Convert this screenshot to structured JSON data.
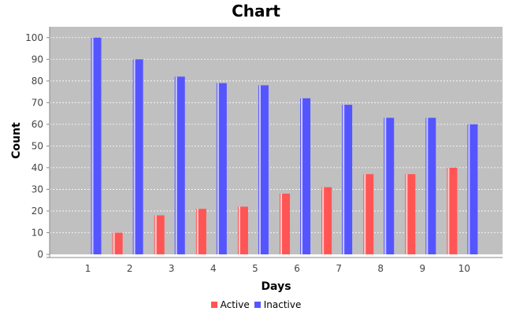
{
  "chart_data": {
    "type": "bar",
    "title": "Chart",
    "xlabel": "Days",
    "ylabel": "Count",
    "categories": [
      "1",
      "2",
      "3",
      "4",
      "5",
      "6",
      "7",
      "8",
      "9",
      "10"
    ],
    "series": [
      {
        "name": "Active",
        "color": "#ff5555",
        "values": [
          0,
          10,
          18,
          21,
          22,
          28,
          31,
          37,
          37,
          40
        ]
      },
      {
        "name": "Inactive",
        "color": "#5555ff",
        "values": [
          100,
          90,
          82,
          79,
          78,
          72,
          69,
          63,
          63,
          60
        ]
      }
    ],
    "ylim": [
      0,
      105
    ],
    "yticks": [
      0,
      10,
      20,
      30,
      40,
      50,
      60,
      70,
      80,
      90,
      100
    ],
    "grid": true,
    "legend": "bottom",
    "plot_background": "#c0c0c0"
  }
}
